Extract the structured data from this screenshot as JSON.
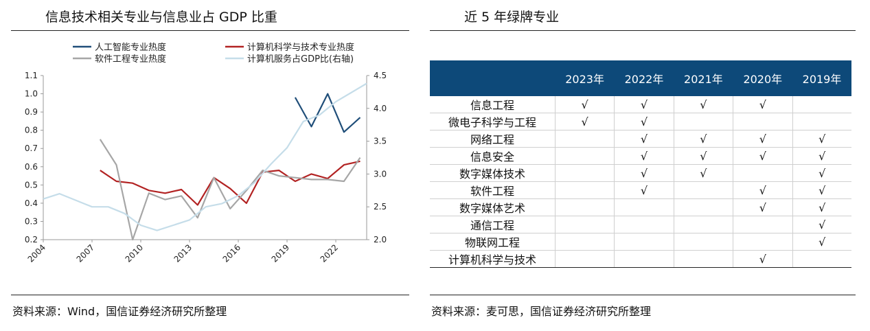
{
  "left_panel": {
    "title": "信息技术相关专业与信息业占 GDP 比重",
    "source": "资料来源：Wind，国信证券经济研究所整理"
  },
  "right_panel": {
    "title": "近 5 年绿牌专业",
    "source": "资料来源：麦可思，国信证券经济研究所整理",
    "table": {
      "header_blank": "",
      "columns": [
        "2023年",
        "2022年",
        "2021年",
        "2020年",
        "2019年"
      ],
      "check_symbol": "√",
      "rows": [
        {
          "major": "信息工程",
          "marks": [
            true,
            true,
            true,
            true,
            false
          ]
        },
        {
          "major": "微电子科学与工程",
          "marks": [
            true,
            true,
            false,
            false,
            false
          ]
        },
        {
          "major": "网络工程",
          "marks": [
            false,
            true,
            true,
            true,
            true
          ]
        },
        {
          "major": "信息安全",
          "marks": [
            false,
            true,
            true,
            true,
            true
          ]
        },
        {
          "major": "数字媒体技术",
          "marks": [
            false,
            true,
            true,
            false,
            true
          ]
        },
        {
          "major": "软件工程",
          "marks": [
            false,
            true,
            false,
            true,
            true
          ]
        },
        {
          "major": "数字媒体艺术",
          "marks": [
            false,
            false,
            false,
            true,
            true
          ]
        },
        {
          "major": "通信工程",
          "marks": [
            false,
            false,
            false,
            false,
            true
          ]
        },
        {
          "major": "物联网工程",
          "marks": [
            false,
            false,
            false,
            false,
            true
          ]
        },
        {
          "major": "计算机科学与技术",
          "marks": [
            false,
            false,
            false,
            true,
            false
          ]
        }
      ]
    }
  },
  "chart_data": {
    "type": "line",
    "title": "信息技术相关专业与信息业占 GDP 比重",
    "x_ticks": [
      "2004",
      "2007",
      "2010",
      "2013",
      "2016",
      "2019",
      "2022"
    ],
    "xlim": [
      2004,
      2023.9
    ],
    "y_left": {
      "ylim": [
        0.2,
        1.1
      ],
      "ticks": [
        "0.2",
        "0.3",
        "0.4",
        "0.5",
        "0.6",
        "0.7",
        "0.8",
        "0.9",
        "1.0",
        "1.1"
      ]
    },
    "y_right": {
      "ylim": [
        2.0,
        4.5
      ],
      "ticks": [
        "2.0",
        "2.5",
        "3.0",
        "3.5",
        "4.0",
        "4.5"
      ]
    },
    "legend_position": "top",
    "series": [
      {
        "name": "人工智能专业热度",
        "color": "#1f4e79",
        "axis": "left",
        "x": [
          2019.5,
          2020.5,
          2021.5,
          2022.5,
          2023.5
        ],
        "y": [
          0.98,
          0.82,
          1.0,
          0.79,
          0.87
        ]
      },
      {
        "name": "计算机科学与技术专业热度",
        "color": "#b22222",
        "axis": "left",
        "x": [
          2007.5,
          2008.5,
          2009.5,
          2010.5,
          2011.5,
          2012.5,
          2013.5,
          2014.5,
          2015.5,
          2016.5,
          2017.5,
          2018.5,
          2019.5,
          2020.5,
          2021.5,
          2022.5,
          2023.5
        ],
        "y": [
          0.58,
          0.52,
          0.51,
          0.47,
          0.455,
          0.475,
          0.39,
          0.54,
          0.48,
          0.4,
          0.57,
          0.58,
          0.52,
          0.56,
          0.535,
          0.61,
          0.63
        ]
      },
      {
        "name": "软件工程专业热度",
        "color": "#a6a6a6",
        "axis": "left",
        "x": [
          2007.5,
          2008.5,
          2009.5,
          2010.5,
          2011.5,
          2012.5,
          2013.5,
          2014.5,
          2015.5,
          2016.5,
          2017.5,
          2018.5,
          2019.5,
          2020.5,
          2021.5,
          2022.5,
          2023.5
        ],
        "y": [
          0.75,
          0.61,
          0.2,
          0.455,
          0.42,
          0.44,
          0.32,
          0.54,
          0.37,
          0.47,
          0.58,
          0.55,
          0.54,
          0.53,
          0.53,
          0.52,
          0.65
        ]
      },
      {
        "name": "计算机服务占GDP比(右轴)",
        "color": "#c5dde9",
        "axis": "right",
        "x": [
          2004,
          2005,
          2006,
          2007,
          2008,
          2009,
          2010,
          2011,
          2012,
          2013,
          2014,
          2015,
          2016,
          2017,
          2018,
          2019,
          2020,
          2021,
          2022,
          2023.9
        ],
        "y": [
          2.62,
          2.7,
          2.6,
          2.5,
          2.5,
          2.4,
          2.22,
          2.14,
          2.22,
          2.3,
          2.5,
          2.55,
          2.67,
          2.87,
          3.15,
          3.4,
          3.8,
          3.9,
          4.1,
          4.38
        ]
      }
    ]
  }
}
